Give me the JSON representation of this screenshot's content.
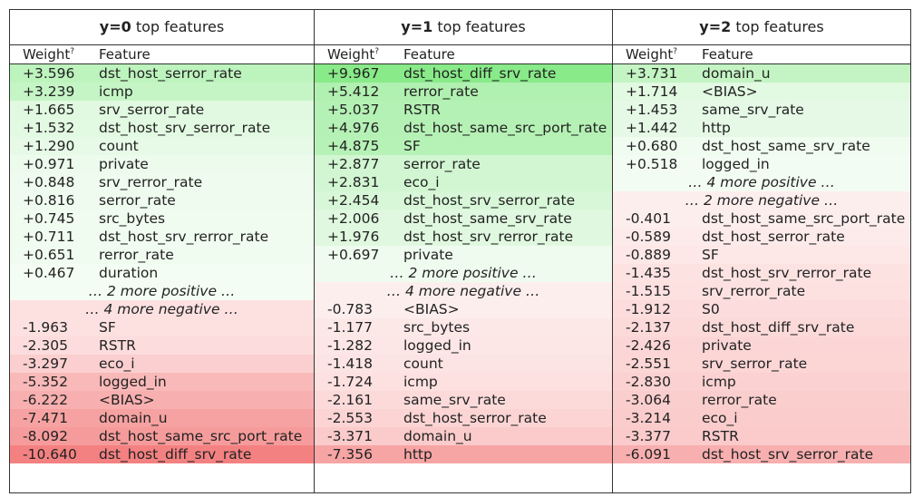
{
  "header": {
    "weight_label": "Weight",
    "weight_sup": "?",
    "feature_label": "Feature"
  },
  "columns": [
    {
      "title_bold": "y=0",
      "title_rest": " top features",
      "rows": [
        {
          "w": "+3.596",
          "f": "dst_host_serror_rate",
          "bg": "#bdf3bd"
        },
        {
          "w": "+3.239",
          "f": "icmp",
          "bg": "#c5f5c5"
        },
        {
          "w": "+1.665",
          "f": "srv_serror_rate",
          "bg": "#e0f9e0"
        },
        {
          "w": "+1.532",
          "f": "dst_host_srv_serror_rate",
          "bg": "#e2f9e2"
        },
        {
          "w": "+1.290",
          "f": "count",
          "bg": "#e7fae7"
        },
        {
          "w": "+0.971",
          "f": "private",
          "bg": "#ecfbec"
        },
        {
          "w": "+0.848",
          "f": "srv_rerror_rate",
          "bg": "#eefbee"
        },
        {
          "w": "+0.816",
          "f": "serror_rate",
          "bg": "#effbef"
        },
        {
          "w": "+0.745",
          "f": "src_bytes",
          "bg": "#f0fcf0"
        },
        {
          "w": "+0.711",
          "f": "dst_host_srv_rerror_rate",
          "bg": "#f0fcf0"
        },
        {
          "w": "+0.651",
          "f": "rerror_rate",
          "bg": "#f1fcf1"
        },
        {
          "w": "+0.467",
          "f": "duration",
          "bg": "#f4fdf4"
        },
        {
          "more": "… 2 more positive …",
          "bg": "#f4fdf4"
        },
        {
          "more": "… 4 more negative …",
          "bg": "#fde1e1"
        },
        {
          "w": "-1.963",
          "f": "SF",
          "bg": "#fde1e1"
        },
        {
          "w": "-2.305",
          "f": "RSTR",
          "bg": "#fcdcdc"
        },
        {
          "w": "-3.297",
          "f": "eco_i",
          "bg": "#fbcfcf"
        },
        {
          "w": "-5.352",
          "f": "logged_in",
          "bg": "#f9b9b9"
        },
        {
          "w": "-6.222",
          "f": "<BIAS>",
          "bg": "#f8afaf"
        },
        {
          "w": "-7.471",
          "f": "domain_u",
          "bg": "#f7a2a2"
        },
        {
          "w": "-8.092",
          "f": "dst_host_same_src_port_rate",
          "bg": "#f69b9b"
        },
        {
          "w": "-10.640",
          "f": "dst_host_diff_srv_rate",
          "bg": "#f48181"
        }
      ]
    },
    {
      "title_bold": "y=1",
      "title_rest": " top features",
      "rows": [
        {
          "w": "+9.967",
          "f": "dst_host_diff_srv_rate",
          "bg": "#88ea88"
        },
        {
          "w": "+5.412",
          "f": "rerror_rate",
          "bg": "#b0f0b0"
        },
        {
          "w": "+5.037",
          "f": "RSTR",
          "bg": "#b4f1b4"
        },
        {
          "w": "+4.976",
          "f": "dst_host_same_src_port_rate",
          "bg": "#b5f1b5"
        },
        {
          "w": "+4.875",
          "f": "SF",
          "bg": "#b6f2b6"
        },
        {
          "w": "+2.877",
          "f": "serror_rate",
          "bg": "#d1f6d1"
        },
        {
          "w": "+2.831",
          "f": "eco_i",
          "bg": "#d2f6d2"
        },
        {
          "w": "+2.454",
          "f": "dst_host_srv_serror_rate",
          "bg": "#d8f7d8"
        },
        {
          "w": "+2.006",
          "f": "dst_host_same_srv_rate",
          "bg": "#dff8df"
        },
        {
          "w": "+1.976",
          "f": "dst_host_srv_rerror_rate",
          "bg": "#dff8df"
        },
        {
          "w": "+0.697",
          "f": "private",
          "bg": "#effbef"
        },
        {
          "more": "… 2 more positive …",
          "bg": "#effbef"
        },
        {
          "more": "… 4 more negative …",
          "bg": "#fdeeee"
        },
        {
          "w": "-0.783",
          "f": "<BIAS>",
          "bg": "#fdeeee"
        },
        {
          "w": "-1.177",
          "f": "src_bytes",
          "bg": "#fde8e8"
        },
        {
          "w": "-1.282",
          "f": "logged_in",
          "bg": "#fde6e6"
        },
        {
          "w": "-1.418",
          "f": "count",
          "bg": "#fde4e4"
        },
        {
          "w": "-1.724",
          "f": "icmp",
          "bg": "#fde0e0"
        },
        {
          "w": "-2.161",
          "f": "same_srv_rate",
          "bg": "#fcdada"
        },
        {
          "w": "-2.553",
          "f": "dst_host_serror_rate",
          "bg": "#fcd4d4"
        },
        {
          "w": "-3.371",
          "f": "domain_u",
          "bg": "#fbcbcb"
        },
        {
          "w": "-7.356",
          "f": "http",
          "bg": "#f7a4a4"
        }
      ]
    },
    {
      "title_bold": "y=2",
      "title_rest": " top features",
      "rows": [
        {
          "w": "+3.731",
          "f": "domain_u",
          "bg": "#c4f4c4"
        },
        {
          "w": "+1.714",
          "f": "<BIAS>",
          "bg": "#e2f9e2"
        },
        {
          "w": "+1.453",
          "f": "same_srv_rate",
          "bg": "#e6f9e6"
        },
        {
          "w": "+1.442",
          "f": "http",
          "bg": "#e6f9e6"
        },
        {
          "w": "+0.680",
          "f": "dst_host_same_srv_rate",
          "bg": "#f0fcf0"
        },
        {
          "w": "+0.518",
          "f": "logged_in",
          "bg": "#f3fcf3"
        },
        {
          "more": "… 4 more positive …",
          "bg": "#f3fcf3"
        },
        {
          "more": "… 2 more negative …",
          "bg": "#fdeeee"
        },
        {
          "w": "-0.401",
          "f": "dst_host_same_src_port_rate",
          "bg": "#fdeeee"
        },
        {
          "w": "-0.589",
          "f": "dst_host_serror_rate",
          "bg": "#fdeaea"
        },
        {
          "w": "-0.889",
          "f": "SF",
          "bg": "#fde7e7"
        },
        {
          "w": "-1.435",
          "f": "dst_host_srv_rerror_rate",
          "bg": "#fde2e2"
        },
        {
          "w": "-1.515",
          "f": "srv_rerror_rate",
          "bg": "#fde1e1"
        },
        {
          "w": "-1.912",
          "f": "S0",
          "bg": "#fcdcdc"
        },
        {
          "w": "-2.137",
          "f": "dst_host_diff_srv_rate",
          "bg": "#fcdada"
        },
        {
          "w": "-2.426",
          "f": "private",
          "bg": "#fcd6d6"
        },
        {
          "w": "-2.551",
          "f": "srv_serror_rate",
          "bg": "#fcd5d5"
        },
        {
          "w": "-2.830",
          "f": "icmp",
          "bg": "#fbd1d1"
        },
        {
          "w": "-3.064",
          "f": "rerror_rate",
          "bg": "#fbcece"
        },
        {
          "w": "-3.214",
          "f": "eco_i",
          "bg": "#fbcccc"
        },
        {
          "w": "-3.377",
          "f": "RSTR",
          "bg": "#fbcaca"
        },
        {
          "w": "-6.091",
          "f": "dst_host_srv_serror_rate",
          "bg": "#f8afaf"
        }
      ]
    }
  ]
}
